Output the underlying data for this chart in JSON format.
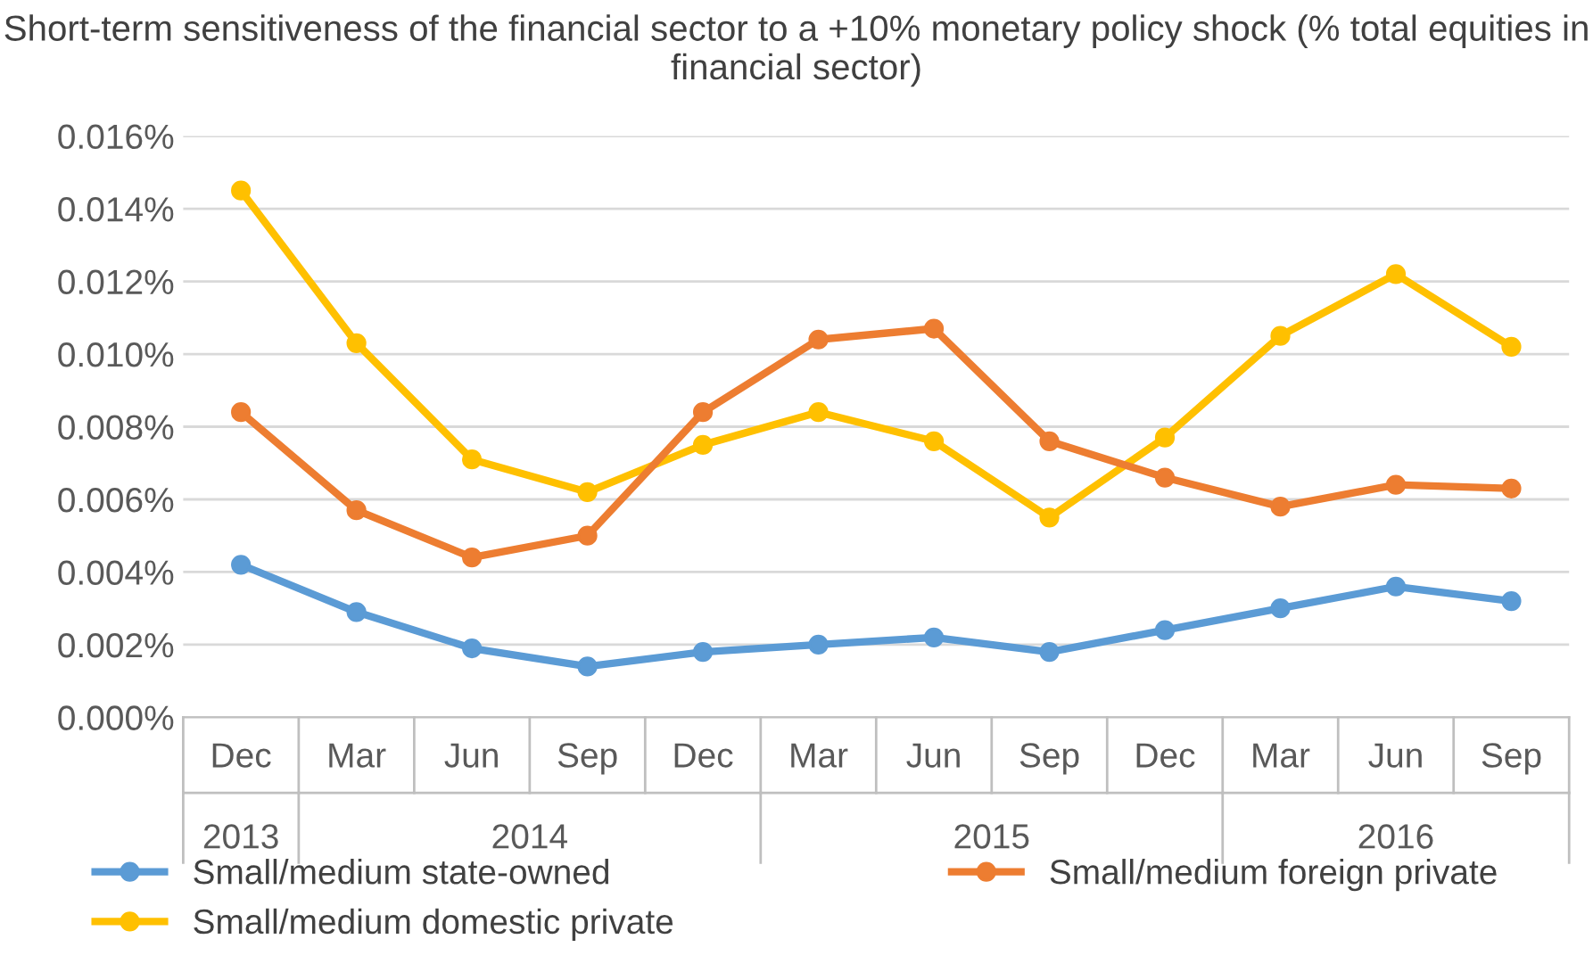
{
  "chart_data": {
    "type": "line",
    "title": "Short-term sensitiveness of the financial sector to a +10% monetary policy shock (% total equities in financial sector)",
    "categories": [
      "Dec",
      "Mar",
      "Jun",
      "Sep",
      "Dec",
      "Mar",
      "Jun",
      "Sep",
      "Dec",
      "Mar",
      "Jun",
      "Sep"
    ],
    "annotations": [
      "2013",
      "2014",
      "2015",
      "2016"
    ],
    "series": [
      {
        "name": "Small/medium state-owned",
        "color": "#5b9bd5",
        "values": [
          0.0042,
          0.0029,
          0.0019,
          0.0014,
          0.0018,
          0.002,
          0.0022,
          0.0018,
          0.0024,
          0.003,
          0.0036,
          0.0032
        ]
      },
      {
        "name": "Small/medium domestic private",
        "color": "#ffc000",
        "values": [
          0.0145,
          0.0103,
          0.0071,
          0.0062,
          0.0075,
          0.0084,
          0.0076,
          0.0055,
          0.0077,
          0.0105,
          0.0122,
          0.0102
        ]
      },
      {
        "name": "Small/medium foreign private",
        "color": "#ed7d31",
        "values": [
          0.0084,
          0.0057,
          0.0044,
          0.005,
          0.0084,
          0.0104,
          0.0107,
          0.0076,
          0.0066,
          0.0058,
          0.0064,
          0.0063
        ]
      }
    ],
    "ylim": [
      0,
      0.016
    ],
    "yticks": [
      {
        "value": 0,
        "label": "0.000%"
      },
      {
        "value": 0.002,
        "label": "0.002%"
      },
      {
        "value": 0.004,
        "label": "0.004%"
      },
      {
        "value": 0.006,
        "label": "0.006%"
      },
      {
        "value": 0.008,
        "label": "0.008%"
      },
      {
        "value": 0.01,
        "label": "0.010%"
      },
      {
        "value": 0.012,
        "label": "0.012%"
      },
      {
        "value": 0.014,
        "label": "0.014%"
      },
      {
        "value": 0.016,
        "label": "0.016%"
      }
    ],
    "grid": "y",
    "legend": "bottom",
    "marker": "circle",
    "line_style": "solid"
  }
}
